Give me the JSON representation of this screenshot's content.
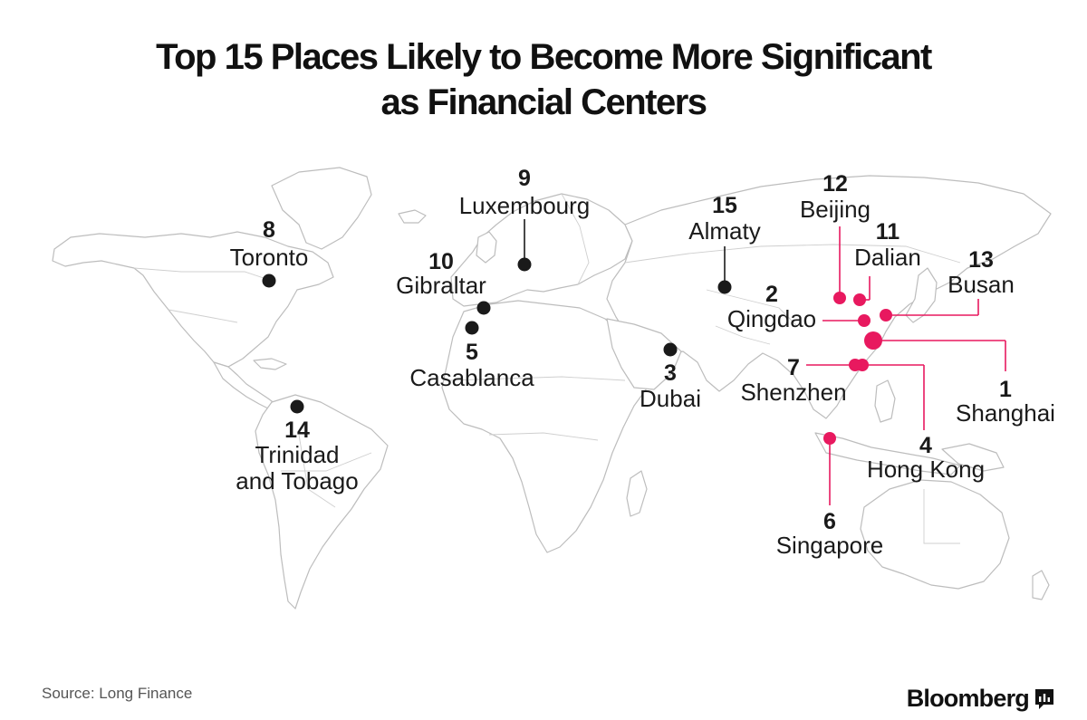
{
  "title_lines": [
    "Top 15 Places Likely to Become More Significant",
    "as Financial Centers"
  ],
  "source": "Source: Long Finance",
  "brand": "Bloomberg",
  "colors": {
    "highlight": "#e8195f",
    "default_marker": "#1a1a1a",
    "land_outline": "#bdbdbd",
    "background": "#ffffff"
  },
  "places": [
    {
      "rank": "1",
      "name": "Shanghai",
      "highlight": true
    },
    {
      "rank": "2",
      "name": "Qingdao",
      "highlight": true
    },
    {
      "rank": "3",
      "name": "Dubai",
      "highlight": false
    },
    {
      "rank": "4",
      "name": "Hong Kong",
      "highlight": true
    },
    {
      "rank": "5",
      "name": "Casablanca",
      "highlight": false
    },
    {
      "rank": "6",
      "name": "Singapore",
      "highlight": true
    },
    {
      "rank": "7",
      "name": "Shenzhen",
      "highlight": true
    },
    {
      "rank": "8",
      "name": "Toronto",
      "highlight": false
    },
    {
      "rank": "9",
      "name": "Luxembourg",
      "highlight": false
    },
    {
      "rank": "10",
      "name": "Gibraltar",
      "highlight": false
    },
    {
      "rank": "11",
      "name": "Dalian",
      "highlight": true
    },
    {
      "rank": "12",
      "name": "Beijing",
      "highlight": true
    },
    {
      "rank": "13",
      "name": "Busan",
      "highlight": true
    },
    {
      "rank": "14",
      "name": "Trinidad and Tobago",
      "name_lines": [
        "Trinidad",
        "and Tobago"
      ],
      "highlight": false
    },
    {
      "rank": "15",
      "name": "Almaty",
      "highlight": false
    }
  ]
}
